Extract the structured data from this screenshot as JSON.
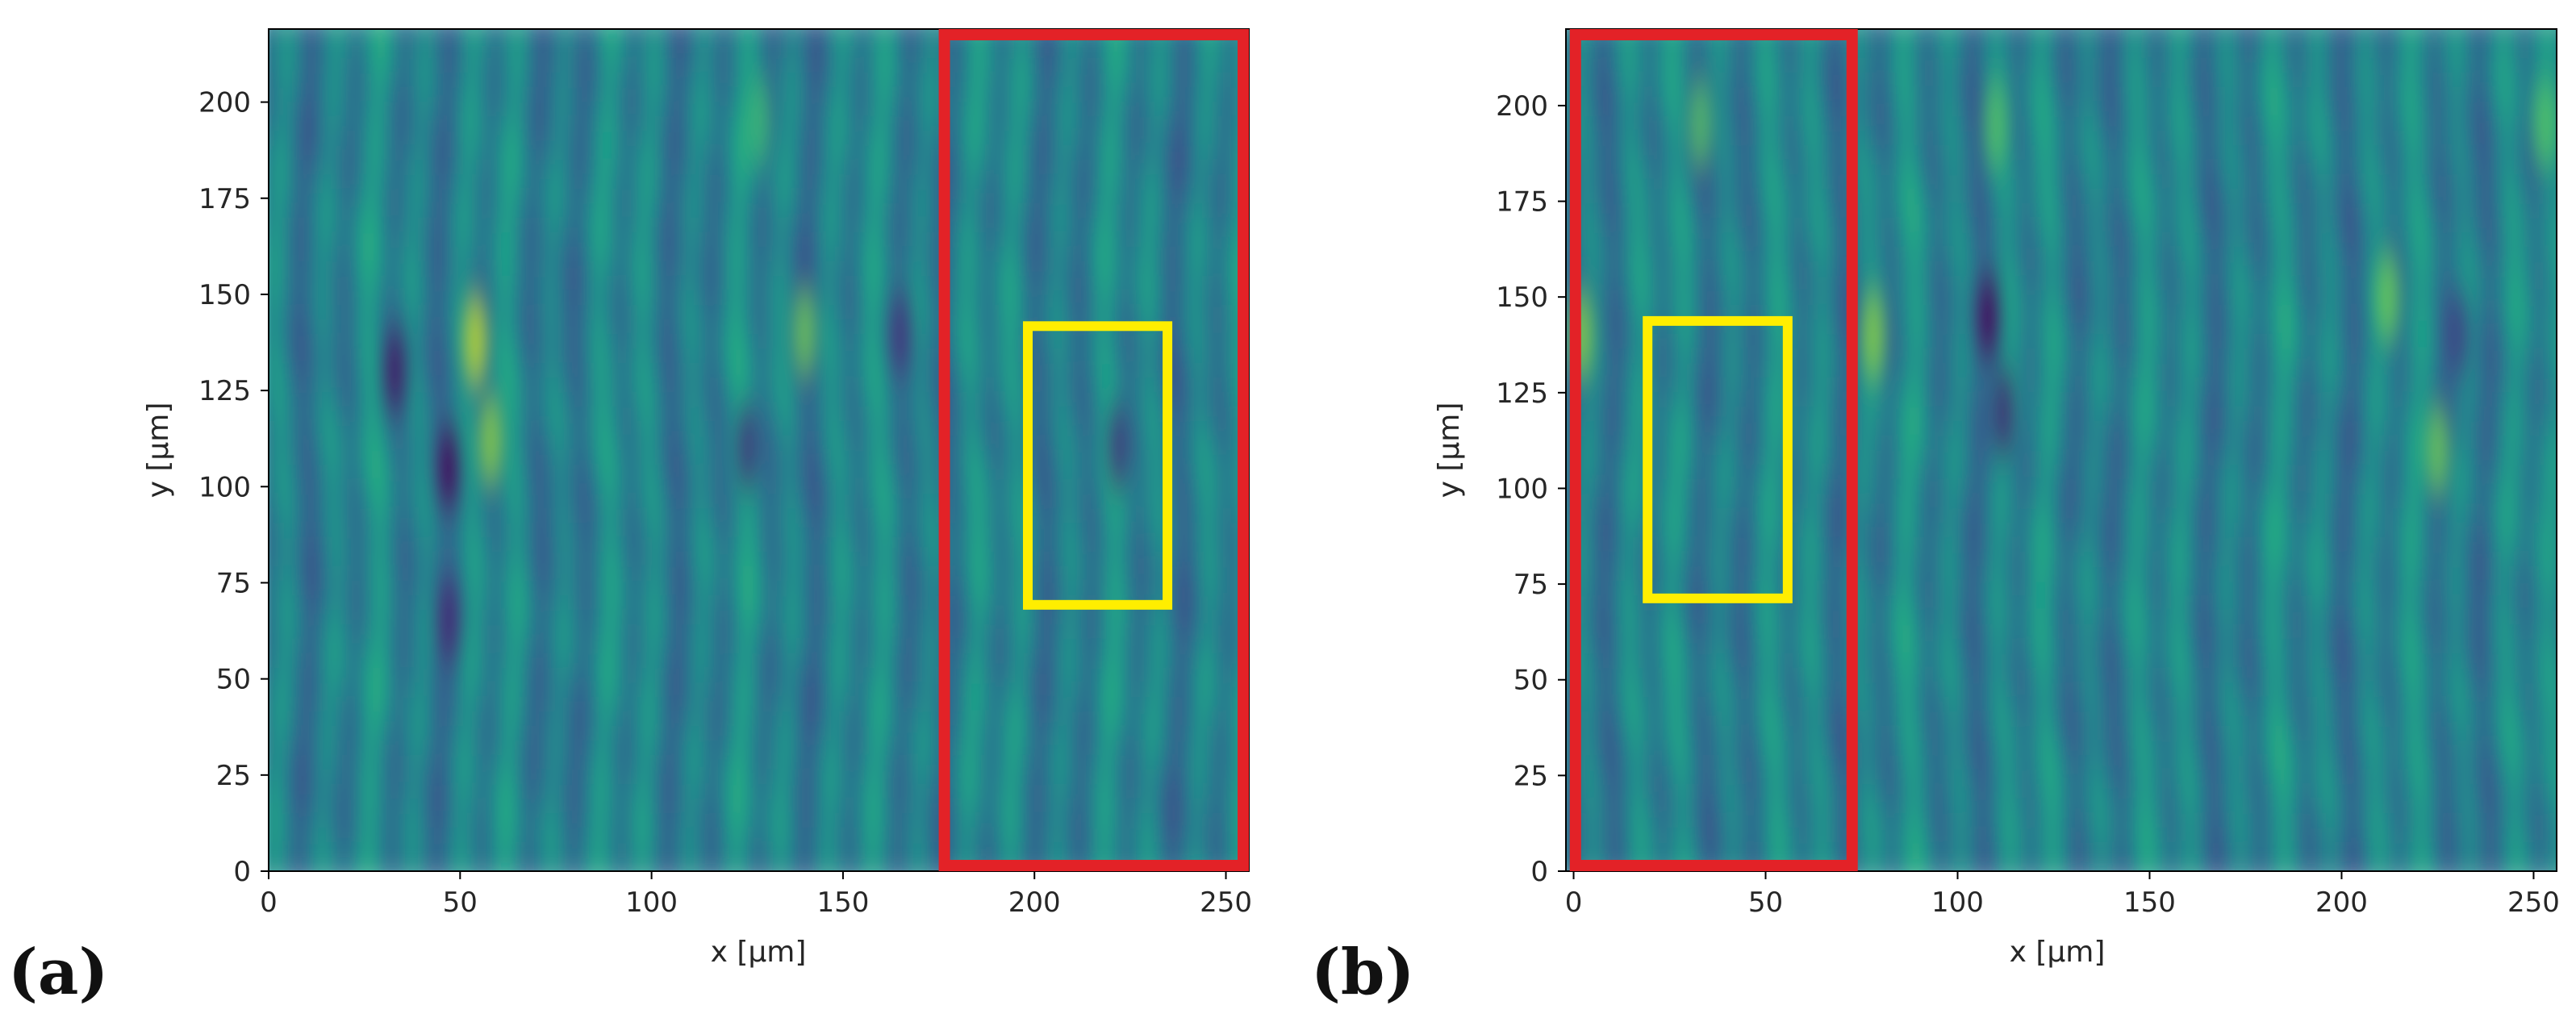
{
  "chart_data": [
    {
      "type": "heatmap",
      "panel_label": "(a)",
      "title": "",
      "xlabel": "x [µm]",
      "ylabel": "y [µm]",
      "xlim": [
        0,
        256
      ],
      "ylim": [
        0,
        219
      ],
      "xticks": [
        0,
        50,
        100,
        150,
        200,
        250
      ],
      "yticks": [
        0,
        25,
        50,
        75,
        100,
        125,
        150,
        175,
        200
      ],
      "colormap": "viridis",
      "stripe_period_um": 12,
      "features": [
        {
          "name": "bright-spot",
          "x": 54,
          "y": 138,
          "value": 1.0
        },
        {
          "name": "bright-spot",
          "x": 58,
          "y": 112,
          "value": 0.8
        },
        {
          "name": "bright-spot",
          "x": 140,
          "y": 140,
          "value": 0.7
        },
        {
          "name": "bright-spot",
          "x": 128,
          "y": 195,
          "value": 0.5
        },
        {
          "name": "dark-spot",
          "x": 47,
          "y": 105,
          "value": -0.9
        },
        {
          "name": "dark-spot",
          "x": 33,
          "y": 130,
          "value": -0.8
        },
        {
          "name": "dark-spot",
          "x": 47,
          "y": 65,
          "value": -0.7
        },
        {
          "name": "dark-spot",
          "x": 125,
          "y": 110,
          "value": -0.6
        },
        {
          "name": "dark-spot",
          "x": 165,
          "y": 140,
          "value": -0.6
        },
        {
          "name": "dark-spot",
          "x": 222,
          "y": 110,
          "value": -0.6
        }
      ],
      "annotations": [
        {
          "name": "red-rectangle",
          "color": "#e32227",
          "x0": 175,
          "x1": 256,
          "y0": 0,
          "y1": 219
        },
        {
          "name": "yellow-rectangle",
          "color": "#ffee00",
          "x0": 197,
          "x1": 236,
          "y0": 68,
          "y1": 143
        }
      ]
    },
    {
      "type": "heatmap",
      "panel_label": "(b)",
      "title": "",
      "xlabel": "x [µm]",
      "ylabel": "y [µm]",
      "xlim": [
        -2,
        256
      ],
      "ylim": [
        0,
        220
      ],
      "xticks": [
        0,
        50,
        100,
        150,
        200,
        250
      ],
      "yticks": [
        0,
        25,
        50,
        75,
        100,
        125,
        150,
        175,
        200
      ],
      "colormap": "viridis",
      "stripe_period_um": 12,
      "features": [
        {
          "name": "bright-spot",
          "x": 2,
          "y": 140,
          "value": 0.8
        },
        {
          "name": "bright-spot",
          "x": 33,
          "y": 195,
          "value": 0.6
        },
        {
          "name": "bright-spot",
          "x": 78,
          "y": 140,
          "value": 0.8
        },
        {
          "name": "bright-spot",
          "x": 110,
          "y": 195,
          "value": 0.6
        },
        {
          "name": "bright-spot",
          "x": 212,
          "y": 150,
          "value": 0.7
        },
        {
          "name": "bright-spot",
          "x": 225,
          "y": 110,
          "value": 0.7
        },
        {
          "name": "bright-spot",
          "x": 253,
          "y": 195,
          "value": 0.6
        },
        {
          "name": "dark-spot",
          "x": 108,
          "y": 145,
          "value": -0.9
        },
        {
          "name": "dark-spot",
          "x": 112,
          "y": 120,
          "value": -0.7
        },
        {
          "name": "dark-spot",
          "x": 230,
          "y": 140,
          "value": -0.5
        }
      ],
      "annotations": [
        {
          "name": "red-rectangle",
          "color": "#e32227",
          "x0": -1,
          "x1": 74,
          "y0": 0,
          "y1": 220
        },
        {
          "name": "yellow-rectangle",
          "color": "#ffee00",
          "x0": 18,
          "x1": 57,
          "y0": 70,
          "y1": 145
        }
      ]
    }
  ]
}
